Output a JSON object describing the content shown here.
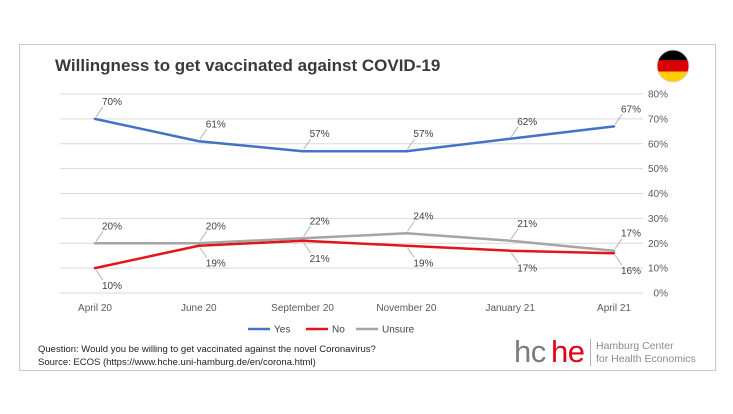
{
  "chart_data": {
    "type": "line",
    "title": "Willingness to get vaccinated against COVID-19",
    "categories": [
      "April 20",
      "June 20",
      "September 20",
      "November 20",
      "January 21",
      "April 21"
    ],
    "ylim": [
      0,
      80
    ],
    "y_ticks": [
      "0%",
      "10%",
      "20%",
      "30%",
      "40%",
      "50%",
      "60%",
      "70%",
      "80%"
    ],
    "grid": true,
    "y_axis_side": "right",
    "legend_position": "bottom",
    "series": [
      {
        "name": "Yes",
        "values": [
          70,
          61,
          57,
          57,
          62,
          67
        ],
        "labels": [
          "70%",
          "61%",
          "57%",
          "57%",
          "62%",
          "67%"
        ],
        "color": "#4472c4"
      },
      {
        "name": "No",
        "values": [
          10,
          19,
          21,
          19,
          17,
          16
        ],
        "labels": [
          "10%",
          "19%",
          "21%",
          "19%",
          "17%",
          "16%"
        ],
        "color": "#e3141b"
      },
      {
        "name": "Unsure",
        "values": [
          20,
          20,
          22,
          24,
          21,
          17
        ],
        "labels": [
          "20%",
          "20%",
          "22%",
          "24%",
          "21%",
          "17%"
        ],
        "color": "#a5a5a5"
      }
    ]
  },
  "footnote": {
    "question": "Question: Would you be willing to get vaccinated against the novel Coronavirus?",
    "source": "Source: ECOS (https://www.hche.uni-hamburg.de/en/corona.html)"
  },
  "logo": {
    "mark_part1": "hc",
    "mark_part2": "he",
    "line1": "Hamburg Center",
    "line2": "for Health Economics",
    "mark_color_grey": "#7c7c7c",
    "mark_color_red": "#e2001a"
  },
  "flag": {
    "icon": "germany-flag-icon",
    "colors": [
      "#000000",
      "#dd0000",
      "#ffce00"
    ]
  }
}
